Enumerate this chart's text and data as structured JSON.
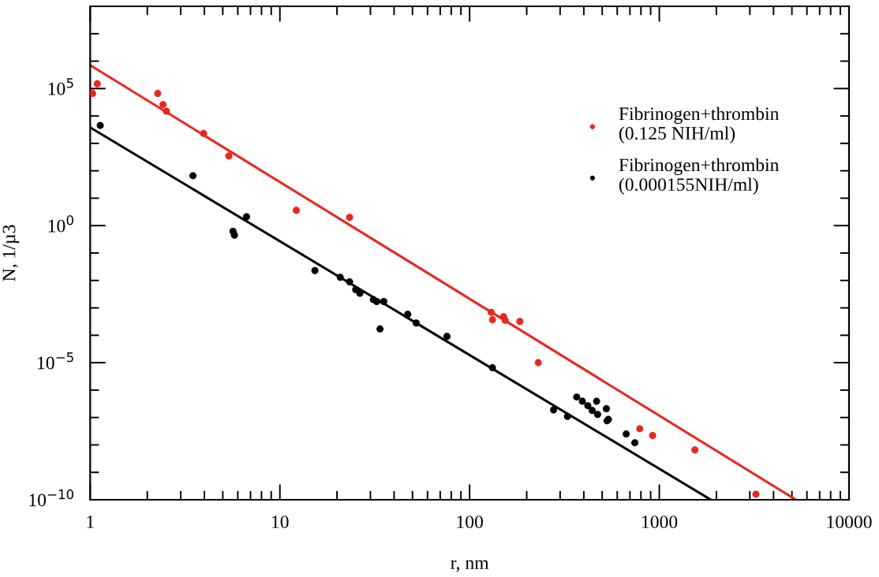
{
  "chart_data": {
    "type": "scatter",
    "xlabel": "r, nm",
    "ylabel": "N, 1/µ3",
    "log": "xy",
    "marker": "circle",
    "legend": "top right",
    "grid": false,
    "xlim": [
      1,
      10000
    ],
    "ylim": [
      1e-10,
      100000000.0
    ],
    "xticks": [
      1,
      {
        "value": 2,
        "label": null
      },
      {
        "value": 3,
        "label": null
      },
      {
        "value": 4,
        "label": null
      },
      {
        "value": 5,
        "label": null
      },
      {
        "value": 6,
        "label": null
      },
      {
        "value": 7,
        "label": null
      },
      {
        "value": 8,
        "label": null
      },
      {
        "value": 9,
        "label": null
      },
      10,
      {
        "value": 20,
        "label": null
      },
      {
        "value": 30,
        "label": null
      },
      {
        "value": 40,
        "label": null
      },
      {
        "value": 50,
        "label": null
      },
      {
        "value": 60,
        "label": null
      },
      {
        "value": 70,
        "label": null
      },
      {
        "value": 80,
        "label": null
      },
      {
        "value": 90,
        "label": null
      },
      100,
      {
        "value": 200,
        "label": null
      },
      {
        "value": 300,
        "label": null
      },
      {
        "value": 400,
        "label": null
      },
      {
        "value": 500,
        "label": null
      },
      {
        "value": 600,
        "label": null
      },
      {
        "value": 700,
        "label": null
      },
      {
        "value": 800,
        "label": null
      },
      {
        "value": 900,
        "label": null
      },
      1000,
      {
        "value": 2000,
        "label": null
      },
      {
        "value": 3000,
        "label": null
      },
      {
        "value": 4000,
        "label": null
      },
      {
        "value": 5000,
        "label": null
      },
      {
        "value": 6000,
        "label": null
      },
      {
        "value": 7000,
        "label": null
      },
      {
        "value": 8000,
        "label": null
      },
      {
        "value": 9000,
        "label": null
      },
      10000
    ],
    "yticks": [
      {
        "value": 1e-10,
        "label": "10$^{−10}$"
      },
      {
        "value": 1e-09,
        "label": null
      },
      {
        "value": 1e-08,
        "label": null
      },
      {
        "value": 1e-07,
        "label": null
      },
      {
        "value": 1e-06,
        "label": null
      },
      {
        "value": 1e-05,
        "label": "10$^{−5}$"
      },
      {
        "value": 0.0001,
        "label": null
      },
      {
        "value": 0.001,
        "label": null
      },
      {
        "value": 0.01,
        "label": null
      },
      {
        "value": 0.1,
        "label": null
      },
      {
        "value": 1,
        "label": "10$^{0}$"
      },
      {
        "value": 10,
        "label": null
      },
      {
        "value": 100,
        "label": null
      },
      {
        "value": 1000,
        "label": null
      },
      {
        "value": 10000.0,
        "label": null
      },
      {
        "value": 100000.0,
        "label": "10$^{5}$"
      },
      {
        "value": 1000000.0,
        "label": null
      },
      {
        "value": 10000000.0,
        "label": null
      },
      {
        "value": 100000000.0,
        "label": null
      }
    ],
    "series": [
      {
        "name": "Fibrinogen+thrombin\n(0.125 NIH/ml)",
        "color": "#e8281e",
        "x": [
          1.03,
          1.09,
          2.27,
          2.42,
          2.52,
          3.96,
          5.38,
          12.2,
          23.3,
          130,
          132,
          151,
          154,
          184,
          230,
          789,
          922,
          1540,
          3230
        ],
        "values": [
          66000.0,
          150000.0,
          66000.0,
          26000.0,
          15000.0,
          2300.0,
          350.0,
          3.6,
          2.0,
          0.00069,
          0.00037,
          0.00048,
          0.00035,
          0.00032,
          1e-05,
          3.9e-08,
          2.2e-08,
          6.6e-09,
          1.6e-10
        ]
      },
      {
        "name": "Fibrinogen+thrombin\n(0.000155NIH/ml)",
        "color": "#000000",
        "x": [
          1.13,
          3.48,
          5.66,
          5.76,
          6.67,
          15.3,
          20.8,
          23.3,
          25.1,
          26.4,
          31.1,
          32.4,
          35.3,
          33.7,
          47.2,
          52.3,
          76.0,
          132,
          277,
          328,
          367,
          393,
          420,
          443,
          467,
          473,
          526,
          530,
          539,
          669,
          743
        ],
        "values": [
          4500.0,
          66,
          0.62,
          0.45,
          2.1,
          0.023,
          0.013,
          0.0089,
          0.0046,
          0.0034,
          0.002,
          0.0017,
          0.0017,
          0.00017,
          0.00058,
          0.00028,
          9.1e-05,
          6.5e-06,
          1.9e-07,
          1.1e-07,
          5.6e-07,
          3.9e-07,
          2.7e-07,
          1.8e-07,
          3.9e-07,
          1.3e-07,
          2.1e-07,
          7.6e-08,
          8.5e-08,
          2.5e-08,
          1.2e-08
        ]
      },
      {
        "type": "line",
        "color": "#e8281e",
        "marker": "none",
        "x": [
          1,
          5250
        ],
        "values": [
          710000.0,
          1e-10
        ]
      },
      {
        "type": "line",
        "color": "#000000",
        "marker": "none",
        "x": [
          1,
          1870
        ],
        "values": [
          3800.0,
          1e-10
        ]
      }
    ]
  }
}
